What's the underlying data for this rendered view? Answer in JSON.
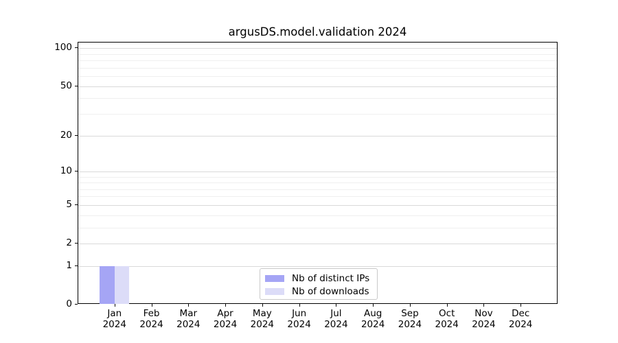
{
  "title": "argusDS.model.validation 2024",
  "colors": {
    "bar_distinct_ips": "#a5a5f5",
    "bar_downloads": "#dcdcf8",
    "grid_major": "#d9d9d9",
    "grid_minor": "#efefef",
    "axis": "#000000",
    "legend_border": "#c9c9c9",
    "background": "#ffffff"
  },
  "legend": {
    "items": [
      {
        "label": "Nb of distinct IPs",
        "color": "#a5a5f5"
      },
      {
        "label": "Nb of downloads",
        "color": "#dcdcf8"
      }
    ]
  },
  "chart_data": {
    "type": "bar",
    "title": "argusDS.model.validation 2024",
    "categories": [
      "Jan 2024",
      "Feb 2024",
      "Mar 2024",
      "Apr 2024",
      "May 2024",
      "Jun 2024",
      "Jul 2024",
      "Aug 2024",
      "Sep 2024",
      "Oct 2024",
      "Nov 2024",
      "Dec 2024"
    ],
    "series": [
      {
        "name": "Nb of distinct IPs",
        "color": "#a5a5f5",
        "values": [
          1,
          0,
          0,
          0,
          0,
          0,
          0,
          0,
          0,
          0,
          0,
          0
        ]
      },
      {
        "name": "Nb of downloads",
        "color": "#dcdcf8",
        "values": [
          1,
          0,
          0,
          0,
          0,
          0,
          0,
          0,
          0,
          0,
          0,
          0
        ]
      }
    ],
    "xlabel": "",
    "ylabel": "",
    "yscale": "log1p",
    "ylim": [
      0,
      111
    ],
    "y_ticks": [
      0,
      1,
      2,
      5,
      10,
      20,
      50,
      100
    ],
    "y_minor_ticks": [
      3,
      4,
      6,
      7,
      8,
      9,
      30,
      40,
      60,
      70,
      80,
      90
    ],
    "grid": "horizontal",
    "legend_position": "lower center"
  }
}
